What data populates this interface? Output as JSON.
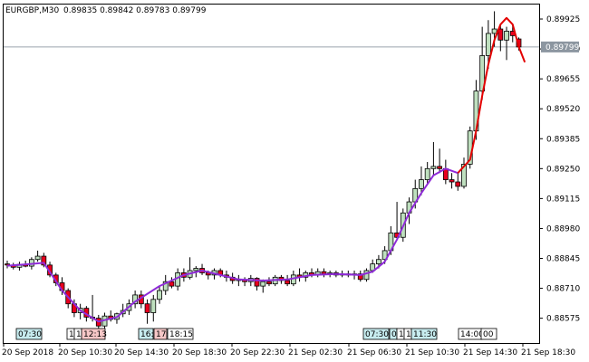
{
  "header": {
    "symbol": "EURGBP,M30",
    "ohlc": "0.89835 0.89842 0.89783 0.89799"
  },
  "colors": {
    "bull": "#bfe0bf",
    "bear": "#e8001e",
    "wick": "#000000",
    "ma_past": "#8f2bd8",
    "ma_future": "#e30000",
    "price_line": "#9aa4ae",
    "price_box": "#8c96a0",
    "grid_border": "#000000"
  },
  "chart_data": {
    "type": "candlestick",
    "title": "EURGBP,M30",
    "ylim": [
      0.885,
      0.8997
    ],
    "y_ticks": [
      "0.89925",
      "0.89790",
      "0.89655",
      "0.89520",
      "0.89385",
      "0.89250",
      "0.89115",
      "0.88980",
      "0.88845",
      "0.88710",
      "0.88575"
    ],
    "current_price": "0.89799",
    "x_ticks": [
      "20 Sep 2018",
      "20 Sep 10:30",
      "20 Sep 14:30",
      "20 Sep 18:30",
      "20 Sep 22:30",
      "21 Sep 02:30",
      "21 Sep 06:30",
      "21 Sep 10:30",
      "21 Sep 14:30",
      "21 Sep 18:30"
    ],
    "session_labels": [
      "07:30",
      "1",
      "1",
      "12:13",
      "16:",
      "17:",
      "18:15",
      "07:30",
      "0",
      "1",
      "1",
      "11:30",
      "14:00",
      "00"
    ],
    "candles": [
      {
        "o": 0.8882,
        "h": 0.88835,
        "l": 0.888,
        "c": 0.88815
      },
      {
        "o": 0.88815,
        "h": 0.88825,
        "l": 0.88795,
        "c": 0.88805
      },
      {
        "o": 0.88805,
        "h": 0.8883,
        "l": 0.8879,
        "c": 0.88818
      },
      {
        "o": 0.88818,
        "h": 0.88835,
        "l": 0.88805,
        "c": 0.8881
      },
      {
        "o": 0.8881,
        "h": 0.8885,
        "l": 0.88795,
        "c": 0.8884
      },
      {
        "o": 0.8884,
        "h": 0.8888,
        "l": 0.8883,
        "c": 0.88855
      },
      {
        "o": 0.88855,
        "h": 0.8887,
        "l": 0.88805,
        "c": 0.88815
      },
      {
        "o": 0.88815,
        "h": 0.8883,
        "l": 0.8876,
        "c": 0.8877
      },
      {
        "o": 0.8877,
        "h": 0.8878,
        "l": 0.8872,
        "c": 0.88735
      },
      {
        "o": 0.88735,
        "h": 0.8876,
        "l": 0.8868,
        "c": 0.887
      },
      {
        "o": 0.887,
        "h": 0.8871,
        "l": 0.8862,
        "c": 0.8864
      },
      {
        "o": 0.8864,
        "h": 0.8866,
        "l": 0.8858,
        "c": 0.886
      },
      {
        "o": 0.886,
        "h": 0.8864,
        "l": 0.8857,
        "c": 0.8862
      },
      {
        "o": 0.8862,
        "h": 0.8863,
        "l": 0.8856,
        "c": 0.8858
      },
      {
        "o": 0.8858,
        "h": 0.8868,
        "l": 0.8856,
        "c": 0.88575
      },
      {
        "o": 0.88575,
        "h": 0.8859,
        "l": 0.8852,
        "c": 0.8854
      },
      {
        "o": 0.8854,
        "h": 0.886,
        "l": 0.8853,
        "c": 0.88585
      },
      {
        "o": 0.88585,
        "h": 0.8861,
        "l": 0.8856,
        "c": 0.8857
      },
      {
        "o": 0.8857,
        "h": 0.886,
        "l": 0.8855,
        "c": 0.88595
      },
      {
        "o": 0.88595,
        "h": 0.8864,
        "l": 0.8858,
        "c": 0.8861
      },
      {
        "o": 0.8861,
        "h": 0.8866,
        "l": 0.8859,
        "c": 0.8864
      },
      {
        "o": 0.8864,
        "h": 0.887,
        "l": 0.8862,
        "c": 0.8868
      },
      {
        "o": 0.8868,
        "h": 0.887,
        "l": 0.8862,
        "c": 0.8864
      },
      {
        "o": 0.8864,
        "h": 0.8866,
        "l": 0.8855,
        "c": 0.886
      },
      {
        "o": 0.886,
        "h": 0.8868,
        "l": 0.8856,
        "c": 0.8866
      },
      {
        "o": 0.8866,
        "h": 0.8872,
        "l": 0.8864,
        "c": 0.887
      },
      {
        "o": 0.887,
        "h": 0.8877,
        "l": 0.8868,
        "c": 0.8874
      },
      {
        "o": 0.8874,
        "h": 0.8876,
        "l": 0.8871,
        "c": 0.8872
      },
      {
        "o": 0.8872,
        "h": 0.888,
        "l": 0.887,
        "c": 0.8878
      },
      {
        "o": 0.8878,
        "h": 0.888,
        "l": 0.8874,
        "c": 0.8876
      },
      {
        "o": 0.8876,
        "h": 0.8885,
        "l": 0.8875,
        "c": 0.8879
      },
      {
        "o": 0.8879,
        "h": 0.8881,
        "l": 0.8876,
        "c": 0.888
      },
      {
        "o": 0.888,
        "h": 0.8882,
        "l": 0.8877,
        "c": 0.8878
      },
      {
        "o": 0.8878,
        "h": 0.8879,
        "l": 0.8875,
        "c": 0.8877
      },
      {
        "o": 0.8877,
        "h": 0.888,
        "l": 0.8875,
        "c": 0.8879
      },
      {
        "o": 0.8879,
        "h": 0.888,
        "l": 0.8876,
        "c": 0.8877
      },
      {
        "o": 0.8877,
        "h": 0.8879,
        "l": 0.8874,
        "c": 0.8876
      },
      {
        "o": 0.8876,
        "h": 0.8878,
        "l": 0.8873,
        "c": 0.88745
      },
      {
        "o": 0.88745,
        "h": 0.8877,
        "l": 0.8872,
        "c": 0.8875
      },
      {
        "o": 0.8875,
        "h": 0.8876,
        "l": 0.8872,
        "c": 0.8874
      },
      {
        "o": 0.8874,
        "h": 0.8877,
        "l": 0.8872,
        "c": 0.88755
      },
      {
        "o": 0.88755,
        "h": 0.8876,
        "l": 0.887,
        "c": 0.8872
      },
      {
        "o": 0.8872,
        "h": 0.8875,
        "l": 0.8869,
        "c": 0.8874
      },
      {
        "o": 0.8874,
        "h": 0.8876,
        "l": 0.8872,
        "c": 0.8873
      },
      {
        "o": 0.8873,
        "h": 0.8877,
        "l": 0.8872,
        "c": 0.8876
      },
      {
        "o": 0.8876,
        "h": 0.8877,
        "l": 0.8873,
        "c": 0.88745
      },
      {
        "o": 0.88745,
        "h": 0.8877,
        "l": 0.8872,
        "c": 0.8873
      },
      {
        "o": 0.8873,
        "h": 0.8879,
        "l": 0.8872,
        "c": 0.8877
      },
      {
        "o": 0.8877,
        "h": 0.888,
        "l": 0.8874,
        "c": 0.8876
      },
      {
        "o": 0.8876,
        "h": 0.8879,
        "l": 0.8874,
        "c": 0.8878
      },
      {
        "o": 0.8878,
        "h": 0.888,
        "l": 0.8876,
        "c": 0.8877
      },
      {
        "o": 0.8877,
        "h": 0.888,
        "l": 0.8876,
        "c": 0.88785
      },
      {
        "o": 0.88785,
        "h": 0.888,
        "l": 0.8876,
        "c": 0.88775
      },
      {
        "o": 0.88775,
        "h": 0.8879,
        "l": 0.8876,
        "c": 0.8878
      },
      {
        "o": 0.8878,
        "h": 0.8879,
        "l": 0.8876,
        "c": 0.8877
      },
      {
        "o": 0.8877,
        "h": 0.8879,
        "l": 0.8876,
        "c": 0.88775
      },
      {
        "o": 0.88775,
        "h": 0.8879,
        "l": 0.8876,
        "c": 0.8877
      },
      {
        "o": 0.8877,
        "h": 0.8879,
        "l": 0.8875,
        "c": 0.88775
      },
      {
        "o": 0.88775,
        "h": 0.8879,
        "l": 0.8874,
        "c": 0.8875
      },
      {
        "o": 0.8875,
        "h": 0.888,
        "l": 0.8874,
        "c": 0.8879
      },
      {
        "o": 0.8879,
        "h": 0.8884,
        "l": 0.8878,
        "c": 0.8882
      },
      {
        "o": 0.8882,
        "h": 0.8886,
        "l": 0.888,
        "c": 0.8884
      },
      {
        "o": 0.8884,
        "h": 0.889,
        "l": 0.8882,
        "c": 0.8888
      },
      {
        "o": 0.8888,
        "h": 0.8899,
        "l": 0.8886,
        "c": 0.8896
      },
      {
        "o": 0.8896,
        "h": 0.891,
        "l": 0.8893,
        "c": 0.8894
      },
      {
        "o": 0.8894,
        "h": 0.8907,
        "l": 0.8892,
        "c": 0.8905
      },
      {
        "o": 0.8905,
        "h": 0.8912,
        "l": 0.89,
        "c": 0.891
      },
      {
        "o": 0.891,
        "h": 0.892,
        "l": 0.8907,
        "c": 0.8916
      },
      {
        "o": 0.8916,
        "h": 0.8926,
        "l": 0.8913,
        "c": 0.892
      },
      {
        "o": 0.892,
        "h": 0.8928,
        "l": 0.8918,
        "c": 0.8925
      },
      {
        "o": 0.8925,
        "h": 0.8937,
        "l": 0.8922,
        "c": 0.8926
      },
      {
        "o": 0.8926,
        "h": 0.8934,
        "l": 0.8923,
        "c": 0.8925
      },
      {
        "o": 0.8925,
        "h": 0.8929,
        "l": 0.8918,
        "c": 0.892
      },
      {
        "o": 0.892,
        "h": 0.8923,
        "l": 0.8916,
        "c": 0.8919
      },
      {
        "o": 0.8919,
        "h": 0.8923,
        "l": 0.8915,
        "c": 0.8917
      },
      {
        "o": 0.8917,
        "h": 0.893,
        "l": 0.8916,
        "c": 0.8927
      },
      {
        "o": 0.8927,
        "h": 0.8944,
        "l": 0.8925,
        "c": 0.8942
      },
      {
        "o": 0.8942,
        "h": 0.8965,
        "l": 0.8938,
        "c": 0.896
      },
      {
        "o": 0.896,
        "h": 0.8989,
        "l": 0.8956,
        "c": 0.8976
      },
      {
        "o": 0.8976,
        "h": 0.8992,
        "l": 0.897,
        "c": 0.8986
      },
      {
        "o": 0.8986,
        "h": 0.8996,
        "l": 0.898,
        "c": 0.8988
      },
      {
        "o": 0.8988,
        "h": 0.899,
        "l": 0.8978,
        "c": 0.8983
      },
      {
        "o": 0.8983,
        "h": 0.8989,
        "l": 0.8974,
        "c": 0.8987
      },
      {
        "o": 0.8987,
        "h": 0.899,
        "l": 0.8982,
        "c": 0.8985
      },
      {
        "o": 0.89835,
        "h": 0.89842,
        "l": 0.89783,
        "c": 0.89799
      }
    ],
    "ma_past": [
      [
        0,
        0.88812
      ],
      [
        4,
        0.8882
      ],
      [
        6,
        0.88825
      ],
      [
        9,
        0.887
      ],
      [
        12,
        0.8861
      ],
      [
        15,
        0.8856
      ],
      [
        18,
        0.8858
      ],
      [
        21,
        0.8865
      ],
      [
        25,
        0.8872
      ],
      [
        29,
        0.8877
      ],
      [
        32,
        0.8879
      ],
      [
        35,
        0.8877
      ],
      [
        38,
        0.8875
      ],
      [
        42,
        0.88745
      ],
      [
        46,
        0.8875
      ],
      [
        50,
        0.8877
      ],
      [
        54,
        0.88775
      ],
      [
        58,
        0.8877
      ],
      [
        60,
        0.88785
      ],
      [
        62,
        0.8883
      ],
      [
        64,
        0.8893
      ],
      [
        66,
        0.8905
      ],
      [
        68,
        0.8914
      ],
      [
        70,
        0.8922
      ],
      [
        72,
        0.8925
      ],
      [
        74,
        0.8923
      ]
    ],
    "ma_future": [
      [
        74,
        0.8923
      ],
      [
        76,
        0.8929
      ],
      [
        77,
        0.8942
      ],
      [
        78,
        0.8958
      ],
      [
        79,
        0.8972
      ],
      [
        80,
        0.8983
      ],
      [
        81,
        0.899
      ],
      [
        82,
        0.8993
      ],
      [
        83,
        0.899
      ],
      [
        84,
        0.898
      ],
      [
        85,
        0.8973
      ]
    ]
  }
}
